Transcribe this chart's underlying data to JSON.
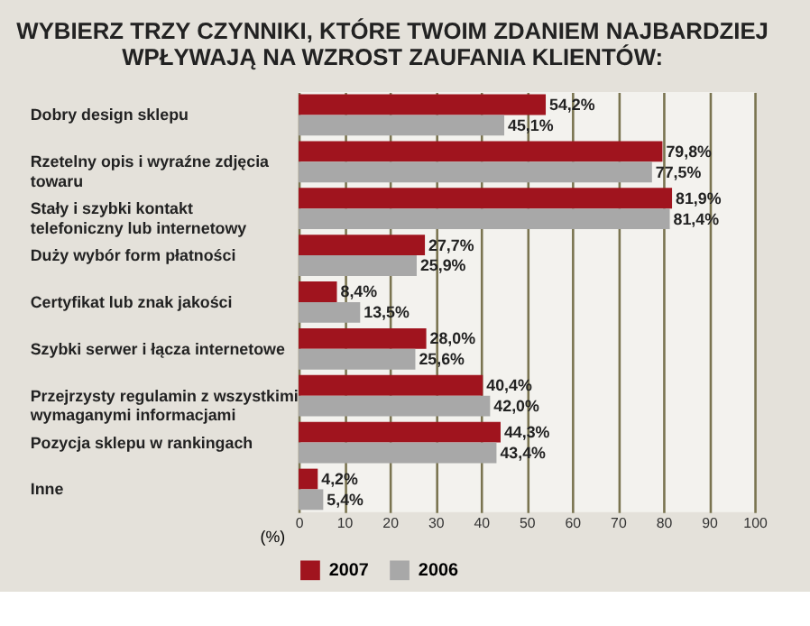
{
  "chart_data": {
    "type": "bar",
    "orientation": "horizontal",
    "title": "WYBIERZ TRZY CZYNNIKI, KTÓRE TWOIM ZDANIEM NAJBARDZIEJ WPŁYWAJĄ NA WZROST ZAUFANIA KLIENTÓW:",
    "xlabel": "(%)",
    "categories": [
      "Dobry design sklepu",
      "Rzetelny opis i wyraźne zdjęcia towaru",
      "Stały i szybki kontakt telefoniczny lub internetowy",
      "Duży wybór form płatności",
      "Certyfikat lub znak jakości",
      "Szybki serwer i łącza internetowe",
      "Przejrzysty regulamin z wszystkimi wymaganymi informacjami",
      "Pozycja sklepu w rankingach",
      "Inne"
    ],
    "series": [
      {
        "name": "2007",
        "color": "#a0141e",
        "values": [
          54.2,
          79.8,
          81.9,
          27.7,
          8.4,
          28.0,
          40.4,
          44.3,
          4.2
        ],
        "value_labels": [
          "54,2%",
          "79,8%",
          "81,9%",
          "27,7%",
          "8,4%",
          "28,0%",
          "40,4%",
          "44,3%",
          "4,2%"
        ]
      },
      {
        "name": "2006",
        "color": "#a8a8a8",
        "values": [
          45.1,
          77.5,
          81.4,
          25.9,
          13.5,
          25.6,
          42.0,
          43.4,
          5.4
        ],
        "value_labels": [
          "45,1%",
          "77,5%",
          "81,4%",
          "25,9%",
          "13,5%",
          "25,6%",
          "42,0%",
          "43,4%",
          "5,4%"
        ]
      }
    ],
    "xlim": [
      0,
      100
    ],
    "xticks": [
      0,
      10,
      20,
      30,
      40,
      50,
      60,
      70,
      80,
      90,
      100
    ],
    "grid": "x",
    "legend": "bottom left"
  }
}
